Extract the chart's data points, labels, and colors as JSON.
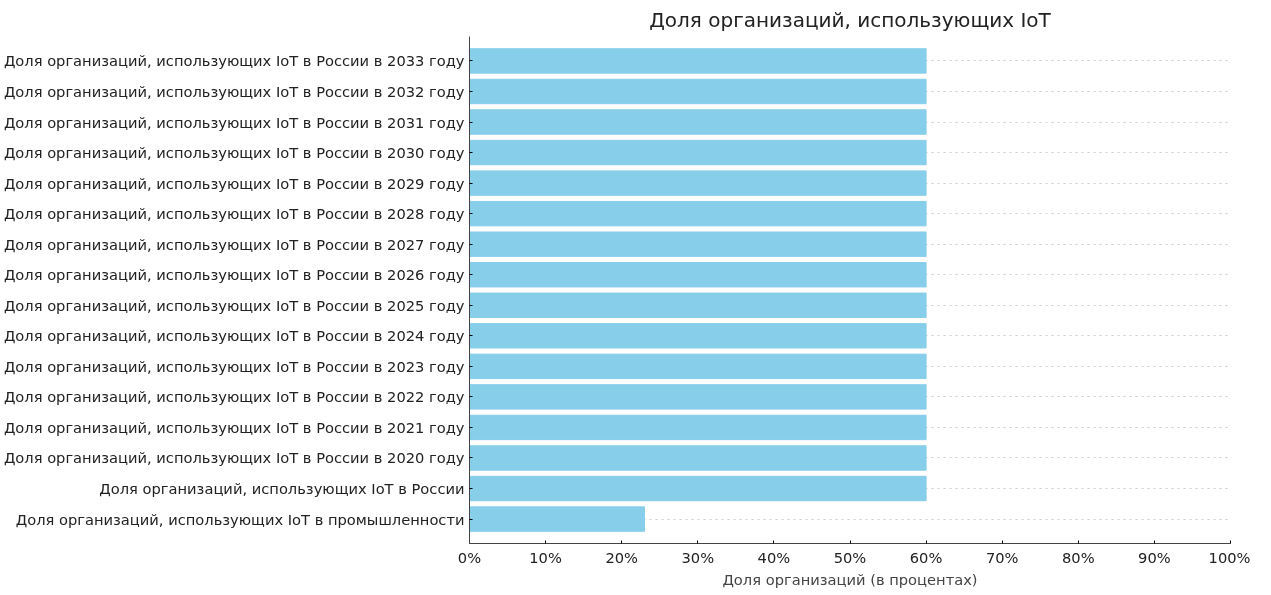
{
  "chart_data": {
    "type": "bar",
    "orientation": "horizontal",
    "title": "Доля организаций, использующих IoT",
    "xlabel": "Доля организаций (в процентах)",
    "categories": [
      "Доля организаций, использующих IoT в России в 2033 году",
      "Доля организаций, использующих IoT в России в 2032 году",
      "Доля организаций, использующих IoT в России в 2031 году",
      "Доля организаций, использующих IoT в России в 2030 году",
      "Доля организаций, использующих IoT в России в 2029 году",
      "Доля организаций, использующих IoT в России в 2028 году",
      "Доля организаций, использующих IoT в России в 2027 году",
      "Доля организаций, использующих IoT в России в 2026 году",
      "Доля организаций, использующих IoT в России в 2025 году",
      "Доля организаций, использующих IoT в России в 2024 году",
      "Доля организаций, использующих IoT в России в 2023 году",
      "Доля организаций, использующих IoT в России в 2022 году",
      "Доля организаций, использующих IoT в России в 2021 году",
      "Доля организаций, использующих IoT в России в 2020 году",
      "Доля организаций, использующих IoT в России",
      "Доля организаций, использующих IoT в промышленности"
    ],
    "values": [
      60,
      60,
      60,
      60,
      60,
      60,
      60,
      60,
      60,
      60,
      60,
      60,
      60,
      60,
      60,
      23
    ],
    "color": "#87ceeb",
    "xlim": [
      0,
      100
    ],
    "xticks": [
      {
        "value": 0,
        "label": "0%"
      },
      {
        "value": 10,
        "label": "10%"
      },
      {
        "value": 20,
        "label": "20%"
      },
      {
        "value": 30,
        "label": "30%"
      },
      {
        "value": 40,
        "label": "40%"
      },
      {
        "value": 50,
        "label": "50%"
      },
      {
        "value": 60,
        "label": "60%"
      },
      {
        "value": 70,
        "label": "70%"
      },
      {
        "value": 80,
        "label": "80%"
      },
      {
        "value": 90,
        "label": "90%"
      },
      {
        "value": 100,
        "label": "100%"
      }
    ],
    "grid": "y",
    "line_style": "dotted"
  }
}
